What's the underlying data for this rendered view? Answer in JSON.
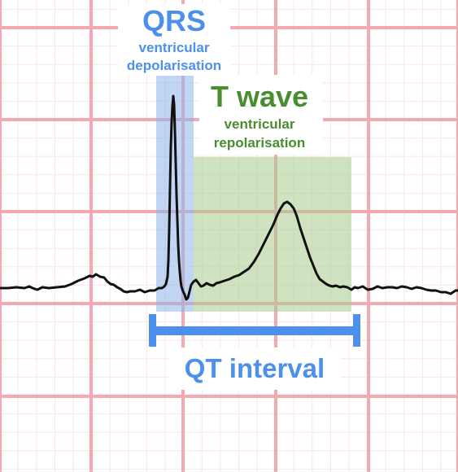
{
  "colors": {
    "grid_major": "#f2a9b1",
    "grid_minor": "#fbe4e7",
    "qrs_accent": "#4d90ec",
    "qrs_region": "#8db5ea",
    "t_accent": "#4a8c30",
    "t_region": "#a8cc8e",
    "trace": "#111111",
    "interval_bar": "#4d90ec"
  },
  "qrs": {
    "title": "QRS",
    "subtitle_line1": "ventricular",
    "subtitle_line2": "depolarisation"
  },
  "t_wave": {
    "title": "T wave",
    "subtitle_line1": "ventricular",
    "subtitle_line2": "repolarisation"
  },
  "qt_interval": {
    "label": "QT interval"
  }
}
